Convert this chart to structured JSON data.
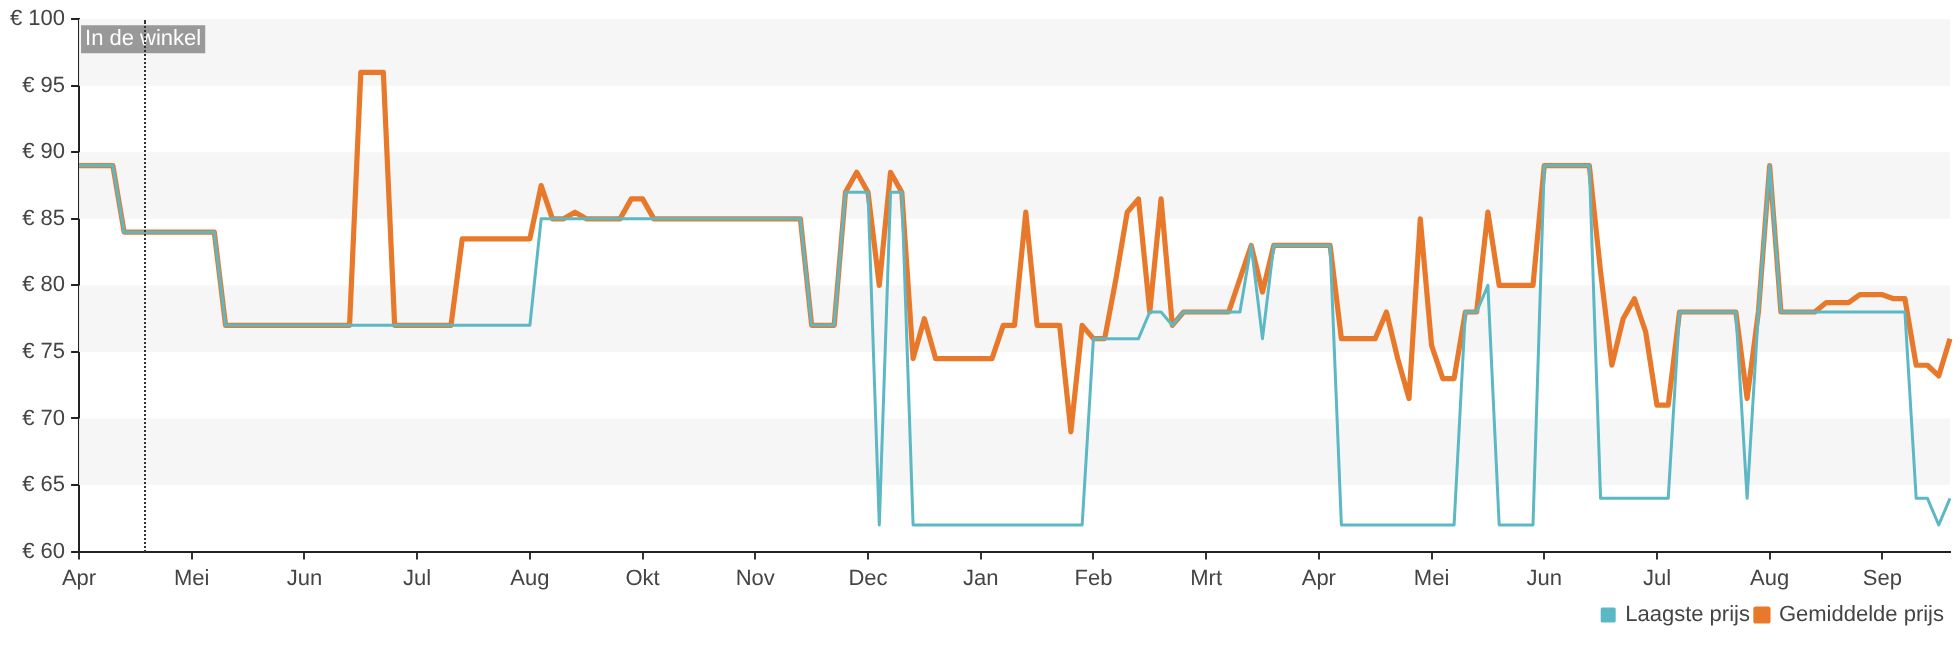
{
  "chart_data": {
    "type": "line",
    "categories": [
      "Apr",
      null,
      null,
      null,
      null,
      null,
      null,
      null,
      null,
      null,
      "Mei",
      null,
      null,
      null,
      null,
      null,
      null,
      null,
      null,
      null,
      "Jun",
      null,
      null,
      null,
      null,
      null,
      null,
      null,
      null,
      null,
      "Jul",
      null,
      null,
      null,
      null,
      null,
      null,
      null,
      null,
      null,
      "Aug",
      null,
      null,
      null,
      null,
      null,
      null,
      null,
      null,
      null,
      "Okt",
      null,
      null,
      null,
      null,
      null,
      null,
      null,
      null,
      null,
      "Nov",
      null,
      null,
      null,
      null,
      null,
      null,
      null,
      null,
      null,
      "Dec",
      null,
      null,
      null,
      null,
      null,
      null,
      null,
      null,
      null,
      "Jan",
      null,
      null,
      null,
      null,
      null,
      null,
      null,
      null,
      null,
      "Feb",
      null,
      null,
      null,
      null,
      null,
      null,
      null,
      null,
      null,
      "Mrt",
      null,
      null,
      null,
      null,
      null,
      null,
      null,
      null,
      null,
      "Apr",
      null,
      null,
      null,
      null,
      null,
      null,
      null,
      null,
      null,
      "Mei",
      null,
      null,
      null,
      null,
      null,
      null,
      null,
      null,
      null,
      "Jun",
      null,
      null,
      null,
      null,
      null,
      null,
      null,
      null,
      null,
      "Jul",
      null,
      null,
      null,
      null,
      null,
      null,
      null,
      null,
      null,
      "Aug",
      null,
      null,
      null,
      null,
      null,
      null,
      null,
      null,
      null,
      "Sep",
      null,
      null,
      null,
      null,
      null,
      null
    ],
    "ylim": [
      60,
      100
    ],
    "yticks": [
      {
        "value": 60,
        "label": "€ 60"
      },
      {
        "value": 65,
        "label": "€ 65"
      },
      {
        "value": 70,
        "label": "€ 70"
      },
      {
        "value": 75,
        "label": "€ 75"
      },
      {
        "value": 80,
        "label": "€ 80"
      },
      {
        "value": 85,
        "label": "€ 85"
      },
      {
        "value": 90,
        "label": "€ 90"
      },
      {
        "value": 95,
        "label": "€ 95"
      },
      {
        "value": 100,
        "label": "€ 100"
      }
    ],
    "bands": [
      {
        "axis": "y",
        "from": 95,
        "to": 100,
        "color": "#f6f6f6"
      },
      {
        "axis": "y",
        "from": 85,
        "to": 90,
        "color": "#f6f6f6"
      },
      {
        "axis": "y",
        "from": 75,
        "to": 80,
        "color": "#f6f6f6"
      },
      {
        "axis": "y",
        "from": 65,
        "to": 70,
        "color": "#f6f6f6"
      }
    ],
    "legend": "bottom right",
    "marker": "none",
    "line_style": "solid",
    "annotations": [
      "In de winkel"
    ],
    "series": [
      {
        "name": "Gemiddelde prijs",
        "color": "#e8792b",
        "values": [
          89,
          89,
          89,
          89,
          84,
          84,
          84,
          84,
          84,
          84,
          84,
          84,
          84,
          77,
          77,
          77,
          77,
          77,
          77,
          77,
          77,
          77,
          77,
          77,
          77,
          96,
          96,
          96,
          77,
          77,
          77,
          77,
          77,
          77,
          83.5,
          83.5,
          83.5,
          83.5,
          83.5,
          83.5,
          83.5,
          87.5,
          85,
          85,
          85.5,
          85,
          85,
          85,
          85,
          86.5,
          86.5,
          85,
          85,
          85,
          85,
          85,
          85,
          85,
          85,
          85,
          85,
          85,
          85,
          85,
          85,
          77,
          77,
          77,
          87,
          88.5,
          87,
          80,
          88.5,
          87,
          74.5,
          77.5,
          74.5,
          74.5,
          74.5,
          74.5,
          74.5,
          74.5,
          77,
          77,
          85.5,
          77,
          77,
          77,
          69,
          77,
          76,
          76,
          80.5,
          85.5,
          86.5,
          78,
          86.5,
          77,
          78,
          78,
          78,
          78,
          78,
          80.5,
          83,
          79.5,
          83,
          83,
          83,
          83,
          83,
          83,
          76,
          76,
          76,
          76,
          78,
          74.5,
          71.5,
          85,
          75.5,
          73,
          73,
          78,
          78,
          85.5,
          80,
          80,
          80,
          80,
          89,
          89,
          89,
          89,
          89,
          81,
          74,
          77.5,
          79,
          76.5,
          71,
          71,
          78,
          78,
          78,
          78,
          78,
          78,
          71.5,
          78,
          89,
          78,
          78,
          78,
          78,
          78.7,
          78.7,
          78.7,
          79.3,
          79.3,
          79.3,
          79,
          79,
          74,
          74,
          73.2,
          76
        ]
      },
      {
        "name": "Laagste prijs",
        "color": "#5bb8c4",
        "values": [
          89,
          89,
          89,
          89,
          84,
          84,
          84,
          84,
          84,
          84,
          84,
          84,
          84,
          77,
          77,
          77,
          77,
          77,
          77,
          77,
          77,
          77,
          77,
          77,
          77,
          77,
          77,
          77,
          77,
          77,
          77,
          77,
          77,
          77,
          77,
          77,
          77,
          77,
          77,
          77,
          77,
          85,
          85,
          85,
          85,
          85,
          85,
          85,
          85,
          85,
          85,
          85,
          85,
          85,
          85,
          85,
          85,
          85,
          85,
          85,
          85,
          85,
          85,
          85,
          85,
          77,
          77,
          77,
          87,
          87,
          87,
          62,
          87,
          87,
          62,
          62,
          62,
          62,
          62,
          62,
          62,
          62,
          62,
          62,
          62,
          62,
          62,
          62,
          62,
          62,
          76,
          76,
          76,
          76,
          76,
          78,
          78,
          77,
          78,
          78,
          78,
          78,
          78,
          78,
          83,
          76,
          83,
          83,
          83,
          83,
          83,
          83,
          62,
          62,
          62,
          62,
          62,
          62,
          62,
          62,
          62,
          62,
          62,
          78,
          78,
          80,
          62,
          62,
          62,
          62,
          89,
          89,
          89,
          89,
          89,
          64,
          64,
          64,
          64,
          64,
          64,
          64,
          78,
          78,
          78,
          78,
          78,
          78,
          64,
          78,
          89,
          78,
          78,
          78,
          78,
          78,
          78,
          78,
          78,
          78,
          78,
          78,
          78,
          64,
          64,
          62,
          64
        ]
      }
    ]
  }
}
